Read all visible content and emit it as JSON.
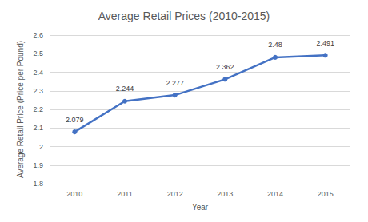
{
  "chart_data": {
    "type": "line",
    "title": "Average Retail Prices (2010-2015)",
    "x_label": "Year",
    "y_label": "Average Retail Price (Price per Pound)",
    "categories": [
      "2010",
      "2011",
      "2012",
      "2013",
      "2014",
      "2015"
    ],
    "values": [
      2.079,
      2.244,
      2.277,
      2.362,
      2.48,
      2.491
    ],
    "color": "#4472c4",
    "marker": "circle",
    "ylim": [
      1.8,
      2.6
    ],
    "yticks": [
      1.8,
      1.9,
      2,
      2.1,
      2.2,
      2.3,
      2.4,
      2.5,
      2.6
    ],
    "grid": true,
    "data_labels": true
  }
}
